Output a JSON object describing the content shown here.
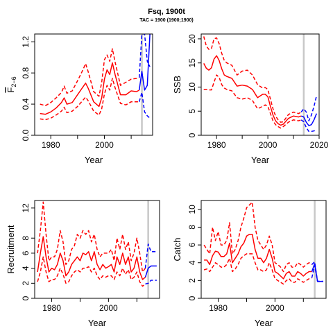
{
  "page": {
    "title": "Fsq, 1900t",
    "subtitle": "TAC = 1900 (1900;1900)"
  },
  "colors": {
    "historical": "#ff0000",
    "projection": "#0000ff",
    "divider": "#c8c8c8"
  },
  "chart_data": [
    {
      "id": "fbar",
      "type": "line",
      "xlabel": "Year",
      "ylabel": "F2-6",
      "ylabel_main": "F",
      "ylabel_sub": "2−6",
      "xlim": [
        1974,
        2018
      ],
      "ylim": [
        0,
        1.3
      ],
      "xticks": [
        1980,
        2000
      ],
      "yticks": [
        0.0,
        0.4,
        0.8,
        1.2
      ],
      "ytick_labels": [
        "0.0",
        "0.4",
        "0.8",
        "1.2"
      ],
      "divider_x": 2014,
      "historical": {
        "x": [
          1976,
          1978,
          1980,
          1982,
          1984,
          1985,
          1986,
          1988,
          1990,
          1992,
          1993,
          1994,
          1996,
          1998,
          1999,
          2000,
          2001,
          2002,
          2003,
          2004,
          2006,
          2008,
          2010,
          2012,
          2013
        ],
        "mid": [
          0.28,
          0.27,
          0.3,
          0.35,
          0.42,
          0.48,
          0.4,
          0.42,
          0.52,
          0.62,
          0.67,
          0.6,
          0.43,
          0.37,
          0.48,
          0.72,
          0.84,
          0.78,
          0.93,
          0.78,
          0.52,
          0.52,
          0.57,
          0.56,
          0.58
        ],
        "upper": [
          0.4,
          0.38,
          0.42,
          0.48,
          0.55,
          0.63,
          0.54,
          0.57,
          0.7,
          0.84,
          0.92,
          0.81,
          0.56,
          0.5,
          0.68,
          0.97,
          1.03,
          0.95,
          1.11,
          0.94,
          0.64,
          0.68,
          0.72,
          0.73,
          0.74
        ],
        "lower": [
          0.21,
          0.2,
          0.22,
          0.26,
          0.31,
          0.36,
          0.29,
          0.31,
          0.37,
          0.45,
          0.49,
          0.44,
          0.31,
          0.26,
          0.34,
          0.53,
          0.64,
          0.58,
          0.73,
          0.61,
          0.41,
          0.39,
          0.43,
          0.43,
          0.43
        ]
      },
      "projection": {
        "x": [
          2013,
          2014,
          2015,
          2016,
          2017
        ],
        "mid": [
          0.58,
          0.82,
          0.58,
          0.64,
          1.3
        ],
        "upper": [
          0.74,
          1.3,
          1.3,
          0.95,
          0.88
        ],
        "lower": [
          0.43,
          0.55,
          0.3,
          0.25,
          0.22
        ]
      }
    },
    {
      "id": "ssb",
      "type": "line",
      "xlabel": "Year",
      "ylabel": "SSB",
      "xlim": [
        1974,
        2020
      ],
      "ylim": [
        0,
        21
      ],
      "xticks": [
        1980,
        2000,
        2020
      ],
      "yticks": [
        0,
        5,
        10,
        15,
        20
      ],
      "ytick_labels": [
        "0",
        "5",
        "10",
        "15",
        "20"
      ],
      "divider_x": 2014,
      "historical": {
        "x": [
          1975,
          1976,
          1977,
          1978,
          1979,
          1980,
          1981,
          1982,
          1983,
          1984,
          1986,
          1988,
          1990,
          1992,
          1994,
          1996,
          1998,
          1999,
          2000,
          2001,
          2002,
          2003,
          2004,
          2005,
          2006,
          2008,
          2010,
          2012,
          2013
        ],
        "mid": [
          14.9,
          13.9,
          13.5,
          14.0,
          15.8,
          16.5,
          15.5,
          13.8,
          12.5,
          12.2,
          11.8,
          10.2,
          10.4,
          10.2,
          9.5,
          7.8,
          8.5,
          8.5,
          8.0,
          6.0,
          4.2,
          3.0,
          2.4,
          2.1,
          2.3,
          3.5,
          4.0,
          3.8,
          4.0
        ],
        "upper": [
          20.5,
          18.5,
          17.8,
          18.0,
          20.0,
          20.2,
          19.0,
          17.0,
          15.5,
          15.0,
          14.5,
          12.5,
          13.3,
          13.5,
          12.5,
          10.5,
          9.8,
          9.9,
          9.5,
          7.5,
          5.5,
          4.0,
          3.2,
          2.7,
          2.8,
          4.3,
          4.8,
          4.5,
          4.8
        ],
        "lower": [
          9.5,
          9.5,
          9.4,
          9.4,
          11.0,
          12.5,
          12.0,
          10.5,
          9.8,
          9.5,
          9.2,
          7.8,
          7.5,
          7.8,
          7.2,
          5.5,
          6.0,
          6.3,
          6.0,
          4.5,
          3.0,
          2.2,
          1.8,
          1.5,
          1.8,
          2.7,
          3.2,
          3.0,
          3.2
        ]
      },
      "projection": {
        "x": [
          2013,
          2014,
          2015,
          2016,
          2017,
          2018,
          2019
        ],
        "mid": [
          4.0,
          3.8,
          2.7,
          2.0,
          2.2,
          3.2,
          4.5
        ],
        "upper": [
          4.8,
          5.5,
          4.8,
          3.0,
          4.2,
          6.0,
          8.2
        ],
        "lower": [
          3.2,
          2.8,
          1.6,
          0.8,
          0.8,
          0.9,
          1.1
        ]
      }
    },
    {
      "id": "recruitment",
      "type": "line",
      "xlabel": "Year",
      "ylabel": "Recruitment",
      "xlim": [
        1974,
        2018
      ],
      "ylim": [
        0,
        13
      ],
      "xticks": [
        1980,
        2000
      ],
      "yticks": [
        0,
        2,
        4,
        6,
        8,
        12
      ],
      "ytick_labels": [
        "0",
        "2",
        "4",
        "6",
        "8",
        "12"
      ],
      "divider_x": 2014,
      "historical": {
        "x": [
          1975,
          1976,
          1977,
          1978,
          1979,
          1980,
          1981,
          1982,
          1983,
          1984,
          1985,
          1986,
          1987,
          1988,
          1989,
          1990,
          1991,
          1992,
          1993,
          1994,
          1995,
          1996,
          1997,
          1998,
          1999,
          2000,
          2001,
          2002,
          2003,
          2004,
          2005,
          2006,
          2007,
          2008,
          2009,
          2010,
          2011,
          2012,
          2013
        ],
        "mid": [
          3.5,
          6.0,
          8.2,
          5.5,
          3.5,
          4.0,
          3.8,
          4.5,
          6.0,
          5.0,
          3.0,
          3.5,
          4.5,
          5.0,
          5.5,
          5.0,
          6.0,
          5.8,
          6.2,
          5.0,
          6.2,
          4.5,
          3.8,
          4.5,
          4.0,
          4.2,
          4.5,
          3.5,
          5.5,
          4.5,
          6.0,
          4.5,
          5.5,
          3.5,
          4.0,
          5.5,
          3.5,
          2.5,
          2.8
        ],
        "upper": [
          6.0,
          9.0,
          12.8,
          8.5,
          5.0,
          5.5,
          5.5,
          6.5,
          9.0,
          7.5,
          4.5,
          5.0,
          6.5,
          7.0,
          8.5,
          8.0,
          9.0,
          8.5,
          9.0,
          7.5,
          8.5,
          6.5,
          5.5,
          6.0,
          6.0,
          6.0,
          6.5,
          5.0,
          8.0,
          6.5,
          8.5,
          6.5,
          7.5,
          5.0,
          6.0,
          8.0,
          6.0,
          3.5,
          4.0
        ],
        "lower": [
          2.2,
          3.5,
          5.5,
          3.5,
          2.2,
          2.5,
          2.5,
          3.0,
          4.0,
          3.2,
          2.0,
          2.2,
          3.0,
          3.5,
          3.8,
          3.5,
          4.0,
          4.0,
          4.2,
          3.5,
          4.0,
          3.0,
          2.5,
          3.0,
          2.8,
          3.0,
          3.0,
          2.5,
          3.5,
          3.0,
          4.0,
          3.2,
          3.8,
          2.5,
          2.8,
          3.5,
          2.2,
          1.6,
          1.9
        ]
      },
      "projection": {
        "x": [
          2013,
          2014,
          2015,
          2016,
          2017
        ],
        "mid": [
          2.8,
          4.0,
          4.3,
          4.3,
          4.3
        ],
        "upper": [
          4.0,
          7.2,
          6.2,
          6.2,
          6.2
        ],
        "lower": [
          1.9,
          2.0,
          2.4,
          2.4,
          2.4
        ]
      }
    },
    {
      "id": "catch",
      "type": "line",
      "xlabel": "Year",
      "ylabel": "Catch",
      "xlim": [
        1974,
        2018
      ],
      "ylim": [
        0,
        11
      ],
      "xticks": [
        1980,
        2000
      ],
      "yticks": [
        0,
        2,
        4,
        6,
        8,
        10
      ],
      "ytick_labels": [
        "0",
        "2",
        "4",
        "6",
        "8",
        "10"
      ],
      "divider_x": 2014,
      "historical": {
        "x": [
          1975,
          1976,
          1977,
          1978,
          1979,
          1980,
          1981,
          1982,
          1983,
          1984,
          1985,
          1986,
          1987,
          1988,
          1989,
          1990,
          1991,
          1992,
          1993,
          1994,
          1995,
          1996,
          1997,
          1998,
          1999,
          2000,
          2001,
          2002,
          2003,
          2004,
          2005,
          2006,
          2007,
          2008,
          2009,
          2010,
          2011,
          2012,
          2013
        ],
        "mid": [
          4.3,
          4.3,
          3.8,
          4.8,
          5.3,
          5.2,
          4.7,
          4.7,
          5.0,
          6.2,
          4.0,
          4.5,
          5.0,
          5.8,
          6.2,
          7.0,
          7.2,
          7.2,
          5.5,
          4.5,
          4.5,
          4.0,
          4.5,
          5.5,
          4.5,
          3.0,
          2.8,
          2.5,
          2.2,
          2.8,
          3.0,
          2.5,
          2.5,
          3.0,
          2.8,
          2.5,
          2.8,
          3.0,
          3.0
        ],
        "upper": [
          6.0,
          5.5,
          5.0,
          8.0,
          6.5,
          7.5,
          6.0,
          6.0,
          6.5,
          8.5,
          5.0,
          5.5,
          6.5,
          8.0,
          9.0,
          10.2,
          10.5,
          10.8,
          8.0,
          6.5,
          6.0,
          5.5,
          6.0,
          7.0,
          6.0,
          4.0,
          3.8,
          3.5,
          3.0,
          3.8,
          4.0,
          3.5,
          3.5,
          4.0,
          3.8,
          3.5,
          3.8,
          4.0,
          3.8
        ],
        "lower": [
          3.2,
          3.3,
          3.0,
          3.5,
          4.0,
          3.8,
          3.5,
          3.5,
          3.8,
          4.5,
          3.0,
          3.3,
          3.8,
          4.5,
          4.8,
          5.0,
          5.0,
          5.0,
          4.0,
          3.2,
          3.2,
          3.0,
          3.2,
          4.0,
          3.2,
          2.2,
          2.0,
          1.8,
          1.6,
          2.0,
          2.2,
          1.8,
          1.8,
          2.2,
          2.0,
          1.8,
          2.0,
          2.2,
          2.3
        ]
      },
      "projection": {
        "x": [
          2013,
          2014,
          2015,
          2016,
          2017
        ],
        "mid": [
          3.0,
          3.9,
          1.9,
          1.9,
          1.9
        ],
        "upper": [
          3.8,
          4.1,
          1.9,
          1.9,
          1.9
        ],
        "lower": [
          2.3,
          3.7,
          1.9,
          1.9,
          1.9
        ]
      }
    }
  ]
}
